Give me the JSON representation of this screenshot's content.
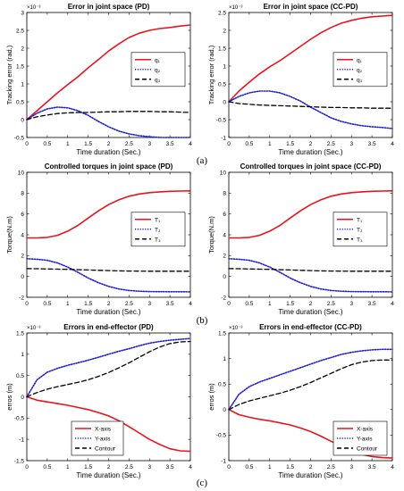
{
  "captions": {
    "a": "(a)",
    "b": "(b)",
    "c": "(c)"
  },
  "colors": {
    "series1": "#e8141c",
    "series2": "#1f1fd6",
    "series3": "#000000",
    "axis": "#000000"
  },
  "chart_data": [
    {
      "type": "line",
      "title": "Error in joint space (PD)",
      "xlabel": "Time duration (Sec.)",
      "ylabel": "Tracking error (rad.)",
      "scale_label": "×10⁻³",
      "xlim": [
        0,
        4
      ],
      "ylim": [
        -0.5,
        3
      ],
      "xticks": [
        "0",
        "0.5",
        "1",
        "1.5",
        "2",
        "2.5",
        "3",
        "3.5",
        "4"
      ],
      "yticks": [
        "-0.5",
        "0",
        "0.5",
        "1",
        "1.5",
        "2",
        "2.5",
        "3"
      ],
      "legend_position": "center-right",
      "x": [
        0,
        0.25,
        0.5,
        0.75,
        1,
        1.25,
        1.5,
        1.75,
        2,
        2.25,
        2.5,
        2.75,
        3,
        3.25,
        3.5,
        3.75,
        4
      ],
      "series": [
        {
          "name": "q₁",
          "style": "solid",
          "values": [
            0,
            0.25,
            0.5,
            0.75,
            0.98,
            1.2,
            1.45,
            1.68,
            1.92,
            2.12,
            2.3,
            2.42,
            2.5,
            2.55,
            2.58,
            2.62,
            2.65
          ]
        },
        {
          "name": "q₂",
          "style": "dotted",
          "values": [
            0,
            0.18,
            0.3,
            0.35,
            0.33,
            0.25,
            0.12,
            -0.05,
            -0.2,
            -0.32,
            -0.4,
            -0.45,
            -0.48,
            -0.5,
            -0.5,
            -0.5,
            -0.5
          ]
        },
        {
          "name": "q₃",
          "style": "dashed",
          "values": [
            0,
            0.08,
            0.13,
            0.17,
            0.19,
            0.2,
            0.2,
            0.21,
            0.22,
            0.22,
            0.23,
            0.23,
            0.23,
            0.22,
            0.22,
            0.21,
            0.2
          ]
        }
      ]
    },
    {
      "type": "line",
      "title": "Error in joint space (CC-PD)",
      "xlabel": "Time duration (Sec.)",
      "ylabel": "Tracking error (rad.)",
      "scale_label": "×10⁻³",
      "xlim": [
        0,
        4
      ],
      "ylim": [
        -1,
        2.5
      ],
      "xticks": [
        "0",
        "0.5",
        "1",
        "1.5",
        "2",
        "2.5",
        "3",
        "3.5",
        "4"
      ],
      "yticks": [
        "-1",
        "-0.5",
        "0",
        "0.5",
        "1",
        "1.5",
        "2",
        "2.5"
      ],
      "legend_position": "center-right",
      "x": [
        0,
        0.25,
        0.5,
        0.75,
        1,
        1.25,
        1.5,
        1.75,
        2,
        2.25,
        2.5,
        2.75,
        3,
        3.25,
        3.5,
        3.75,
        4
      ],
      "series": [
        {
          "name": "q₁",
          "style": "solid",
          "values": [
            0,
            0.3,
            0.55,
            0.78,
            0.98,
            1.15,
            1.35,
            1.55,
            1.75,
            1.93,
            2.08,
            2.2,
            2.28,
            2.34,
            2.38,
            2.4,
            2.42
          ]
        },
        {
          "name": "q₂",
          "style": "dotted",
          "values": [
            0,
            0.15,
            0.25,
            0.3,
            0.3,
            0.25,
            0.15,
            0.02,
            -0.15,
            -0.3,
            -0.45,
            -0.55,
            -0.62,
            -0.67,
            -0.7,
            -0.72,
            -0.75
          ]
        },
        {
          "name": "q₃",
          "style": "dashed",
          "values": [
            0,
            -0.05,
            -0.07,
            -0.09,
            -0.1,
            -0.11,
            -0.12,
            -0.13,
            -0.14,
            -0.15,
            -0.16,
            -0.16,
            -0.17,
            -0.17,
            -0.18,
            -0.18,
            -0.18
          ]
        }
      ]
    },
    {
      "type": "line",
      "title": "Controlled torques in joint space (PD)",
      "xlabel": "Time duration (Sec.)",
      "ylabel": "Torque(N.m)",
      "scale_label": "",
      "xlim": [
        0,
        4
      ],
      "ylim": [
        -2,
        10
      ],
      "xticks": [
        "0",
        "0.5",
        "1",
        "1.5",
        "2",
        "2.5",
        "3",
        "3.5",
        "4"
      ],
      "yticks": [
        "-2",
        "0",
        "2",
        "4",
        "6",
        "8",
        "10"
      ],
      "legend_position": "center-right",
      "x": [
        0,
        0.25,
        0.5,
        0.75,
        1,
        1.25,
        1.5,
        1.75,
        2,
        2.25,
        2.5,
        2.75,
        3,
        3.25,
        3.5,
        3.75,
        4
      ],
      "series": [
        {
          "name": "T₁",
          "style": "solid",
          "values": [
            3.7,
            3.7,
            3.75,
            3.95,
            4.35,
            4.9,
            5.6,
            6.3,
            6.9,
            7.35,
            7.7,
            7.92,
            8.05,
            8.12,
            8.17,
            8.2,
            8.22
          ]
        },
        {
          "name": "T₂",
          "style": "dotted",
          "values": [
            1.7,
            1.65,
            1.55,
            1.3,
            0.9,
            0.4,
            -0.15,
            -0.6,
            -0.95,
            -1.2,
            -1.35,
            -1.42,
            -1.45,
            -1.46,
            -1.47,
            -1.47,
            -1.48
          ]
        },
        {
          "name": "T₃",
          "style": "dashed",
          "values": [
            0.75,
            0.74,
            0.72,
            0.7,
            0.68,
            0.65,
            0.62,
            0.59,
            0.56,
            0.54,
            0.52,
            0.51,
            0.5,
            0.5,
            0.5,
            0.5,
            0.5
          ]
        }
      ]
    },
    {
      "type": "line",
      "title": "Controlled torques in joint space (CC-PD)",
      "xlabel": "Time duration (Sec.)",
      "ylabel": "Torque(N.m)",
      "scale_label": "",
      "xlim": [
        0,
        4
      ],
      "ylim": [
        -2,
        10
      ],
      "xticks": [
        "0",
        "0.5",
        "1",
        "1.5",
        "2",
        "2.5",
        "3",
        "3.5",
        "4"
      ],
      "yticks": [
        "-2",
        "0",
        "2",
        "4",
        "6",
        "8",
        "10"
      ],
      "legend_position": "center-right",
      "x": [
        0,
        0.25,
        0.5,
        0.75,
        1,
        1.25,
        1.5,
        1.75,
        2,
        2.25,
        2.5,
        2.75,
        3,
        3.25,
        3.5,
        3.75,
        4
      ],
      "series": [
        {
          "name": "T₁",
          "style": "solid",
          "values": [
            3.7,
            3.7,
            3.75,
            3.95,
            4.35,
            4.9,
            5.6,
            6.3,
            6.9,
            7.35,
            7.7,
            7.92,
            8.05,
            8.12,
            8.17,
            8.2,
            8.22
          ]
        },
        {
          "name": "T₂",
          "style": "dotted",
          "values": [
            1.7,
            1.65,
            1.55,
            1.3,
            0.9,
            0.4,
            -0.15,
            -0.6,
            -0.95,
            -1.2,
            -1.35,
            -1.42,
            -1.45,
            -1.46,
            -1.47,
            -1.47,
            -1.48
          ]
        },
        {
          "name": "T₃",
          "style": "dashed",
          "values": [
            0.75,
            0.74,
            0.72,
            0.7,
            0.68,
            0.65,
            0.62,
            0.59,
            0.56,
            0.54,
            0.52,
            0.51,
            0.5,
            0.5,
            0.5,
            0.5,
            0.5
          ]
        }
      ]
    },
    {
      "type": "line",
      "title": "Errors in end-effector (PD)",
      "xlabel": "Time duration (Sec.)",
      "ylabel": "erros (m)",
      "scale_label": "×10⁻³",
      "xlim": [
        0,
        4
      ],
      "ylim": [
        -1.5,
        1.5
      ],
      "xticks": [
        "0",
        "0.5",
        "1",
        "1.5",
        "2",
        "2.5",
        "3",
        "3.5",
        "4"
      ],
      "yticks": [
        "-1.5",
        "-1",
        "-0.5",
        "0",
        "0.5",
        "1",
        "1.5"
      ],
      "legend_position": "bottom-left",
      "x": [
        0,
        0.25,
        0.5,
        0.75,
        1,
        1.25,
        1.5,
        1.75,
        2,
        2.25,
        2.5,
        2.75,
        3,
        3.25,
        3.5,
        3.75,
        4
      ],
      "series": [
        {
          "name": "X-axis",
          "style": "solid",
          "values": [
            0,
            -0.08,
            -0.12,
            -0.16,
            -0.2,
            -0.25,
            -0.3,
            -0.37,
            -0.45,
            -0.56,
            -0.7,
            -0.85,
            -1.0,
            -1.12,
            -1.22,
            -1.27,
            -1.28
          ]
        },
        {
          "name": "Y-axis",
          "style": "dotted",
          "values": [
            0,
            0.4,
            0.58,
            0.67,
            0.74,
            0.8,
            0.86,
            0.93,
            1.0,
            1.07,
            1.13,
            1.2,
            1.26,
            1.3,
            1.33,
            1.35,
            1.37
          ]
        },
        {
          "name": "Contour",
          "style": "dashed",
          "values": [
            0,
            0.1,
            0.18,
            0.24,
            0.29,
            0.34,
            0.4,
            0.48,
            0.57,
            0.68,
            0.8,
            0.93,
            1.06,
            1.17,
            1.25,
            1.29,
            1.3
          ]
        }
      ]
    },
    {
      "type": "line",
      "title": "Errors in end-effector (CC-PD)",
      "xlabel": "Time duration (Sec.)",
      "ylabel": "erros (m)",
      "scale_label": "×10⁻³",
      "xlim": [
        0,
        4
      ],
      "ylim": [
        -1,
        1.5
      ],
      "xticks": [
        "0",
        "0.5",
        "1",
        "1.5",
        "2",
        "2.5",
        "3",
        "3.5",
        "4"
      ],
      "yticks": [
        "-1",
        "-0.5",
        "0",
        "0.5",
        "1",
        "1.5"
      ],
      "legend_position": "bottom-right",
      "x": [
        0,
        0.25,
        0.5,
        0.75,
        1,
        1.25,
        1.5,
        1.75,
        2,
        2.25,
        2.5,
        2.75,
        3,
        3.25,
        3.5,
        3.75,
        4
      ],
      "series": [
        {
          "name": "X-axis",
          "style": "solid",
          "values": [
            0,
            -0.1,
            -0.15,
            -0.19,
            -0.22,
            -0.26,
            -0.3,
            -0.36,
            -0.43,
            -0.52,
            -0.62,
            -0.72,
            -0.81,
            -0.88,
            -0.92,
            -0.94,
            -0.95
          ]
        },
        {
          "name": "Y-axis",
          "style": "dotted",
          "values": [
            0,
            0.3,
            0.45,
            0.54,
            0.61,
            0.68,
            0.75,
            0.82,
            0.89,
            0.96,
            1.02,
            1.08,
            1.12,
            1.15,
            1.17,
            1.18,
            1.18
          ]
        },
        {
          "name": "Contour",
          "style": "dashed",
          "values": [
            0,
            0.1,
            0.17,
            0.22,
            0.27,
            0.32,
            0.38,
            0.45,
            0.53,
            0.62,
            0.71,
            0.8,
            0.88,
            0.93,
            0.96,
            0.97,
            0.97
          ]
        }
      ]
    }
  ]
}
